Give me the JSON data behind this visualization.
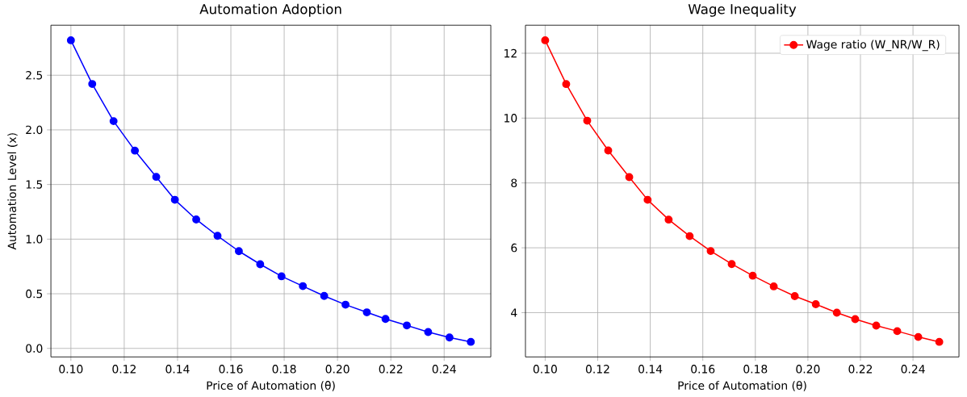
{
  "chart_data": [
    {
      "type": "line",
      "title": "Automation Adoption",
      "xlabel": "Price of Automation (θ)",
      "ylabel": "Automation Level (x)",
      "x": [
        0.1,
        0.108,
        0.116,
        0.124,
        0.132,
        0.139,
        0.147,
        0.155,
        0.163,
        0.171,
        0.179,
        0.187,
        0.195,
        0.203,
        0.211,
        0.218,
        0.226,
        0.234,
        0.242,
        0.25
      ],
      "series": [
        {
          "color": "#0000ff",
          "values": [
            2.82,
            2.42,
            2.08,
            1.81,
            1.57,
            1.36,
            1.18,
            1.03,
            0.89,
            0.77,
            0.66,
            0.57,
            0.48,
            0.4,
            0.33,
            0.27,
            0.21,
            0.15,
            0.1,
            0.06
          ]
        }
      ],
      "xlim": [
        0.0925,
        0.2575
      ],
      "ylim": [
        -0.078,
        2.958
      ],
      "xticks": [
        {
          "value": 0.1,
          "label": "0.10"
        },
        {
          "value": 0.12,
          "label": "0.12"
        },
        {
          "value": 0.14,
          "label": "0.14"
        },
        {
          "value": 0.16,
          "label": "0.16"
        },
        {
          "value": 0.18,
          "label": "0.18"
        },
        {
          "value": 0.2,
          "label": "0.20"
        },
        {
          "value": 0.22,
          "label": "0.22"
        },
        {
          "value": 0.24,
          "label": "0.24"
        }
      ],
      "yticks": [
        {
          "value": 0.0,
          "label": "0.0"
        },
        {
          "value": 0.5,
          "label": "0.5"
        },
        {
          "value": 1.0,
          "label": "1.0"
        },
        {
          "value": 1.5,
          "label": "1.5"
        },
        {
          "value": 2.0,
          "label": "2.0"
        },
        {
          "value": 2.5,
          "label": "2.5"
        }
      ],
      "grid": true,
      "marker": "circle",
      "line_style": "solid"
    },
    {
      "type": "line",
      "title": "Wage Inequality",
      "xlabel": "Price of Automation (θ)",
      "x": [
        0.1,
        0.108,
        0.116,
        0.124,
        0.132,
        0.139,
        0.147,
        0.155,
        0.163,
        0.171,
        0.179,
        0.187,
        0.195,
        0.203,
        0.211,
        0.218,
        0.226,
        0.234,
        0.242,
        0.25
      ],
      "series": [
        {
          "name": "Wage ratio (W_NR/W_R)",
          "color": "#ff0000",
          "values": [
            12.4,
            11.05,
            9.92,
            9.0,
            8.18,
            7.48,
            6.87,
            6.36,
            5.9,
            5.5,
            5.14,
            4.81,
            4.51,
            4.26,
            4.0,
            3.8,
            3.6,
            3.43,
            3.25,
            3.1
          ]
        }
      ],
      "xlim": [
        0.0925,
        0.2575
      ],
      "ylim": [
        2.635,
        12.865
      ],
      "xticks": [
        {
          "value": 0.1,
          "label": "0.10"
        },
        {
          "value": 0.12,
          "label": "0.12"
        },
        {
          "value": 0.14,
          "label": "0.14"
        },
        {
          "value": 0.16,
          "label": "0.16"
        },
        {
          "value": 0.18,
          "label": "0.18"
        },
        {
          "value": 0.2,
          "label": "0.20"
        },
        {
          "value": 0.22,
          "label": "0.22"
        },
        {
          "value": 0.24,
          "label": "0.24"
        }
      ],
      "yticks": [
        4,
        6,
        8,
        10,
        12
      ],
      "grid": true,
      "legend": "top right",
      "marker": "circle",
      "line_style": "solid"
    }
  ]
}
